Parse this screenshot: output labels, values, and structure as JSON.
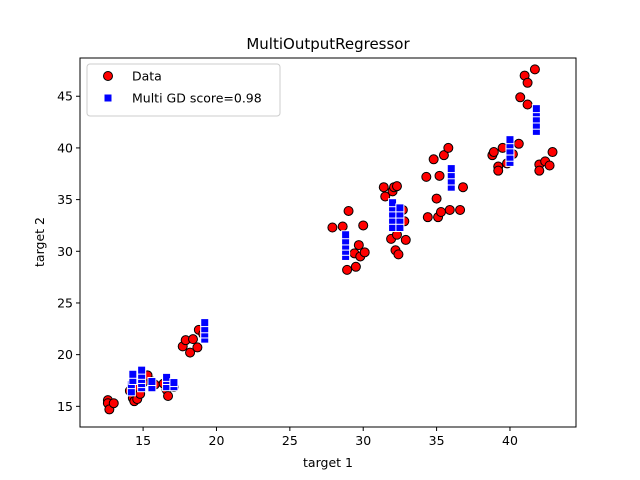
{
  "chart_data": {
    "type": "scatter",
    "title": "MultiOutputRegressor",
    "xlabel": "target 1",
    "ylabel": "target 2",
    "xlim": [
      10.7,
      44.5
    ],
    "ylim": [
      13.0,
      48.7
    ],
    "xticks": [
      15,
      20,
      25,
      30,
      35,
      40
    ],
    "yticks": [
      15,
      20,
      25,
      30,
      35,
      40,
      45
    ],
    "grid": false,
    "legend_position": "top-left",
    "series": [
      {
        "name": "Data",
        "marker": "circle",
        "color": "#ff0000",
        "edgecolor": "#000000",
        "points": [
          [
            12.6,
            15.6
          ],
          [
            12.6,
            15.3
          ],
          [
            12.7,
            14.7
          ],
          [
            13.0,
            15.3
          ],
          [
            14.1,
            16.5
          ],
          [
            14.3,
            15.8
          ],
          [
            14.4,
            15.5
          ],
          [
            14.6,
            15.7
          ],
          [
            14.5,
            16.9
          ],
          [
            14.8,
            16.2
          ],
          [
            15.0,
            17.3
          ],
          [
            15.3,
            18.0
          ],
          [
            15.6,
            17.4
          ],
          [
            15.8,
            17.1
          ],
          [
            16.4,
            17.2
          ],
          [
            16.6,
            16.6
          ],
          [
            16.7,
            16.0
          ],
          [
            16.9,
            17.2
          ],
          [
            17.1,
            16.9
          ],
          [
            17.7,
            20.8
          ],
          [
            17.9,
            21.4
          ],
          [
            18.2,
            20.2
          ],
          [
            18.4,
            21.5
          ],
          [
            18.7,
            20.7
          ],
          [
            18.8,
            22.4
          ],
          [
            19.1,
            22.0
          ],
          [
            27.9,
            32.3
          ],
          [
            28.6,
            32.4
          ],
          [
            28.9,
            28.2
          ],
          [
            29.0,
            33.9
          ],
          [
            29.4,
            29.8
          ],
          [
            29.5,
            28.5
          ],
          [
            29.7,
            30.6
          ],
          [
            29.8,
            29.5
          ],
          [
            30.0,
            32.5
          ],
          [
            30.1,
            29.9
          ],
          [
            31.4,
            36.2
          ],
          [
            31.5,
            35.3
          ],
          [
            31.9,
            31.2
          ],
          [
            32.0,
            35.8
          ],
          [
            32.1,
            36.2
          ],
          [
            32.2,
            30.1
          ],
          [
            32.3,
            36.3
          ],
          [
            32.3,
            31.6
          ],
          [
            32.4,
            29.7
          ],
          [
            32.7,
            34.0
          ],
          [
            32.8,
            32.9
          ],
          [
            32.9,
            31.1
          ],
          [
            34.3,
            37.2
          ],
          [
            34.4,
            33.3
          ],
          [
            34.8,
            38.9
          ],
          [
            35.0,
            35.1
          ],
          [
            35.1,
            33.3
          ],
          [
            35.2,
            37.3
          ],
          [
            35.3,
            33.8
          ],
          [
            35.5,
            39.3
          ],
          [
            35.8,
            40.0
          ],
          [
            35.9,
            34.0
          ],
          [
            36.6,
            34.0
          ],
          [
            36.8,
            36.2
          ],
          [
            38.8,
            39.3
          ],
          [
            38.9,
            39.6
          ],
          [
            39.2,
            38.2
          ],
          [
            39.2,
            37.8
          ],
          [
            39.5,
            40.0
          ],
          [
            39.8,
            38.5
          ],
          [
            40.2,
            39.4
          ],
          [
            40.6,
            40.4
          ],
          [
            40.7,
            44.9
          ],
          [
            41.0,
            47.0
          ],
          [
            41.2,
            46.3
          ],
          [
            41.2,
            44.2
          ],
          [
            41.7,
            47.6
          ],
          [
            42.0,
            38.4
          ],
          [
            42.0,
            37.8
          ],
          [
            42.4,
            38.7
          ],
          [
            42.7,
            38.3
          ],
          [
            42.9,
            39.6
          ]
        ]
      },
      {
        "name": "Multi GD score=0.98",
        "marker": "square",
        "color": "#0000ff",
        "edgecolor": "#ffffff",
        "points": [
          [
            14.2,
            16.4
          ],
          [
            14.2,
            17.1
          ],
          [
            14.3,
            17.5
          ],
          [
            14.3,
            18.1
          ],
          [
            14.9,
            16.8
          ],
          [
            14.9,
            17.2
          ],
          [
            14.9,
            17.6
          ],
          [
            14.9,
            18.0
          ],
          [
            14.9,
            18.5
          ],
          [
            15.6,
            16.8
          ],
          [
            15.6,
            17.4
          ],
          [
            16.6,
            16.9
          ],
          [
            16.6,
            17.5
          ],
          [
            16.6,
            17.8
          ],
          [
            17.1,
            16.9
          ],
          [
            17.1,
            17.3
          ],
          [
            19.2,
            21.5
          ],
          [
            19.2,
            22.0
          ],
          [
            19.2,
            22.5
          ],
          [
            19.2,
            23.1
          ],
          [
            28.8,
            29.5
          ],
          [
            28.8,
            30.0
          ],
          [
            28.8,
            30.5
          ],
          [
            28.8,
            31.0
          ],
          [
            28.8,
            31.6
          ],
          [
            32.0,
            32.3
          ],
          [
            32.0,
            33.0
          ],
          [
            32.0,
            33.6
          ],
          [
            32.0,
            34.2
          ],
          [
            32.0,
            34.7
          ],
          [
            32.5,
            32.3
          ],
          [
            32.5,
            33.0
          ],
          [
            32.5,
            33.6
          ],
          [
            32.5,
            34.2
          ],
          [
            36.0,
            36.2
          ],
          [
            36.0,
            36.8
          ],
          [
            36.0,
            37.4
          ],
          [
            36.0,
            38.0
          ],
          [
            40.0,
            38.6
          ],
          [
            40.0,
            39.1
          ],
          [
            40.0,
            39.7
          ],
          [
            40.0,
            40.3
          ],
          [
            40.0,
            40.8
          ],
          [
            41.8,
            41.6
          ],
          [
            41.8,
            42.2
          ],
          [
            41.8,
            42.8
          ],
          [
            41.8,
            43.4
          ],
          [
            41.8,
            43.8
          ]
        ]
      }
    ]
  }
}
